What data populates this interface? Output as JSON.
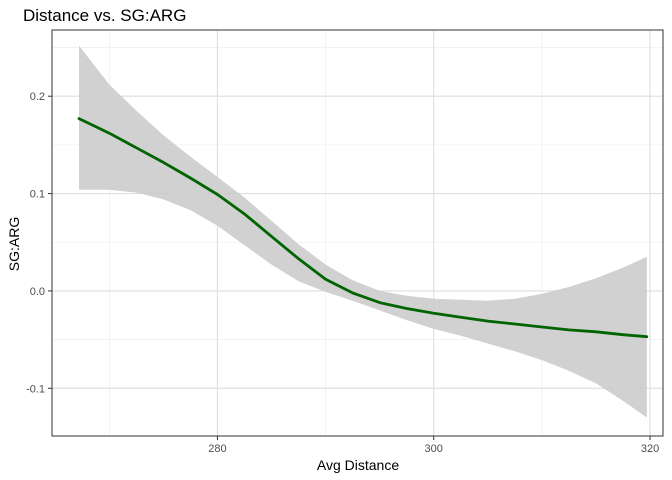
{
  "chart_data": {
    "type": "line",
    "title": "Distance vs. SG:ARG",
    "xlabel": "Avg Distance",
    "ylabel": "SG:ARG",
    "xlim": [
      264.7,
      321.2
    ],
    "ylim": [
      -0.149,
      0.268
    ],
    "x_ticks": [
      280,
      300,
      320
    ],
    "x_minor_ticks": [
      270,
      290,
      310
    ],
    "y_ticks": [
      -0.1,
      0.0,
      0.1,
      0.2
    ],
    "y_tick_labels": [
      "-0.1",
      "0.0",
      "0.1",
      "0.2"
    ],
    "y_minor_ticks": [
      -0.05,
      0.05,
      0.15,
      0.25
    ],
    "grid": true,
    "series": [
      {
        "color": "#006400",
        "x": [
          267.2,
          270,
          272.5,
          275,
          277.5,
          280,
          282.5,
          285,
          287.5,
          290,
          292.5,
          295,
          297.5,
          300,
          302.5,
          305,
          307.5,
          310,
          312.5,
          315,
          317.5,
          319.7
        ],
        "y": [
          0.177,
          0.162,
          0.147,
          0.132,
          0.116,
          0.099,
          0.079,
          0.056,
          0.033,
          0.012,
          -0.002,
          -0.012,
          -0.018,
          -0.023,
          -0.027,
          -0.031,
          -0.034,
          -0.037,
          -0.04,
          -0.042,
          -0.045,
          -0.047
        ],
        "band_color": "#cccccc",
        "ci_upper": [
          0.252,
          0.212,
          0.185,
          0.16,
          0.138,
          0.117,
          0.096,
          0.072,
          0.048,
          0.027,
          0.011,
          0.0,
          -0.005,
          -0.008,
          -0.009,
          -0.01,
          -0.008,
          -0.003,
          0.004,
          0.013,
          0.024,
          0.035
        ],
        "ci_lower": [
          0.104,
          0.104,
          0.101,
          0.094,
          0.083,
          0.067,
          0.047,
          0.027,
          0.01,
          -0.001,
          -0.01,
          -0.02,
          -0.03,
          -0.039,
          -0.046,
          -0.054,
          -0.062,
          -0.071,
          -0.082,
          -0.095,
          -0.113,
          -0.13
        ]
      }
    ]
  }
}
